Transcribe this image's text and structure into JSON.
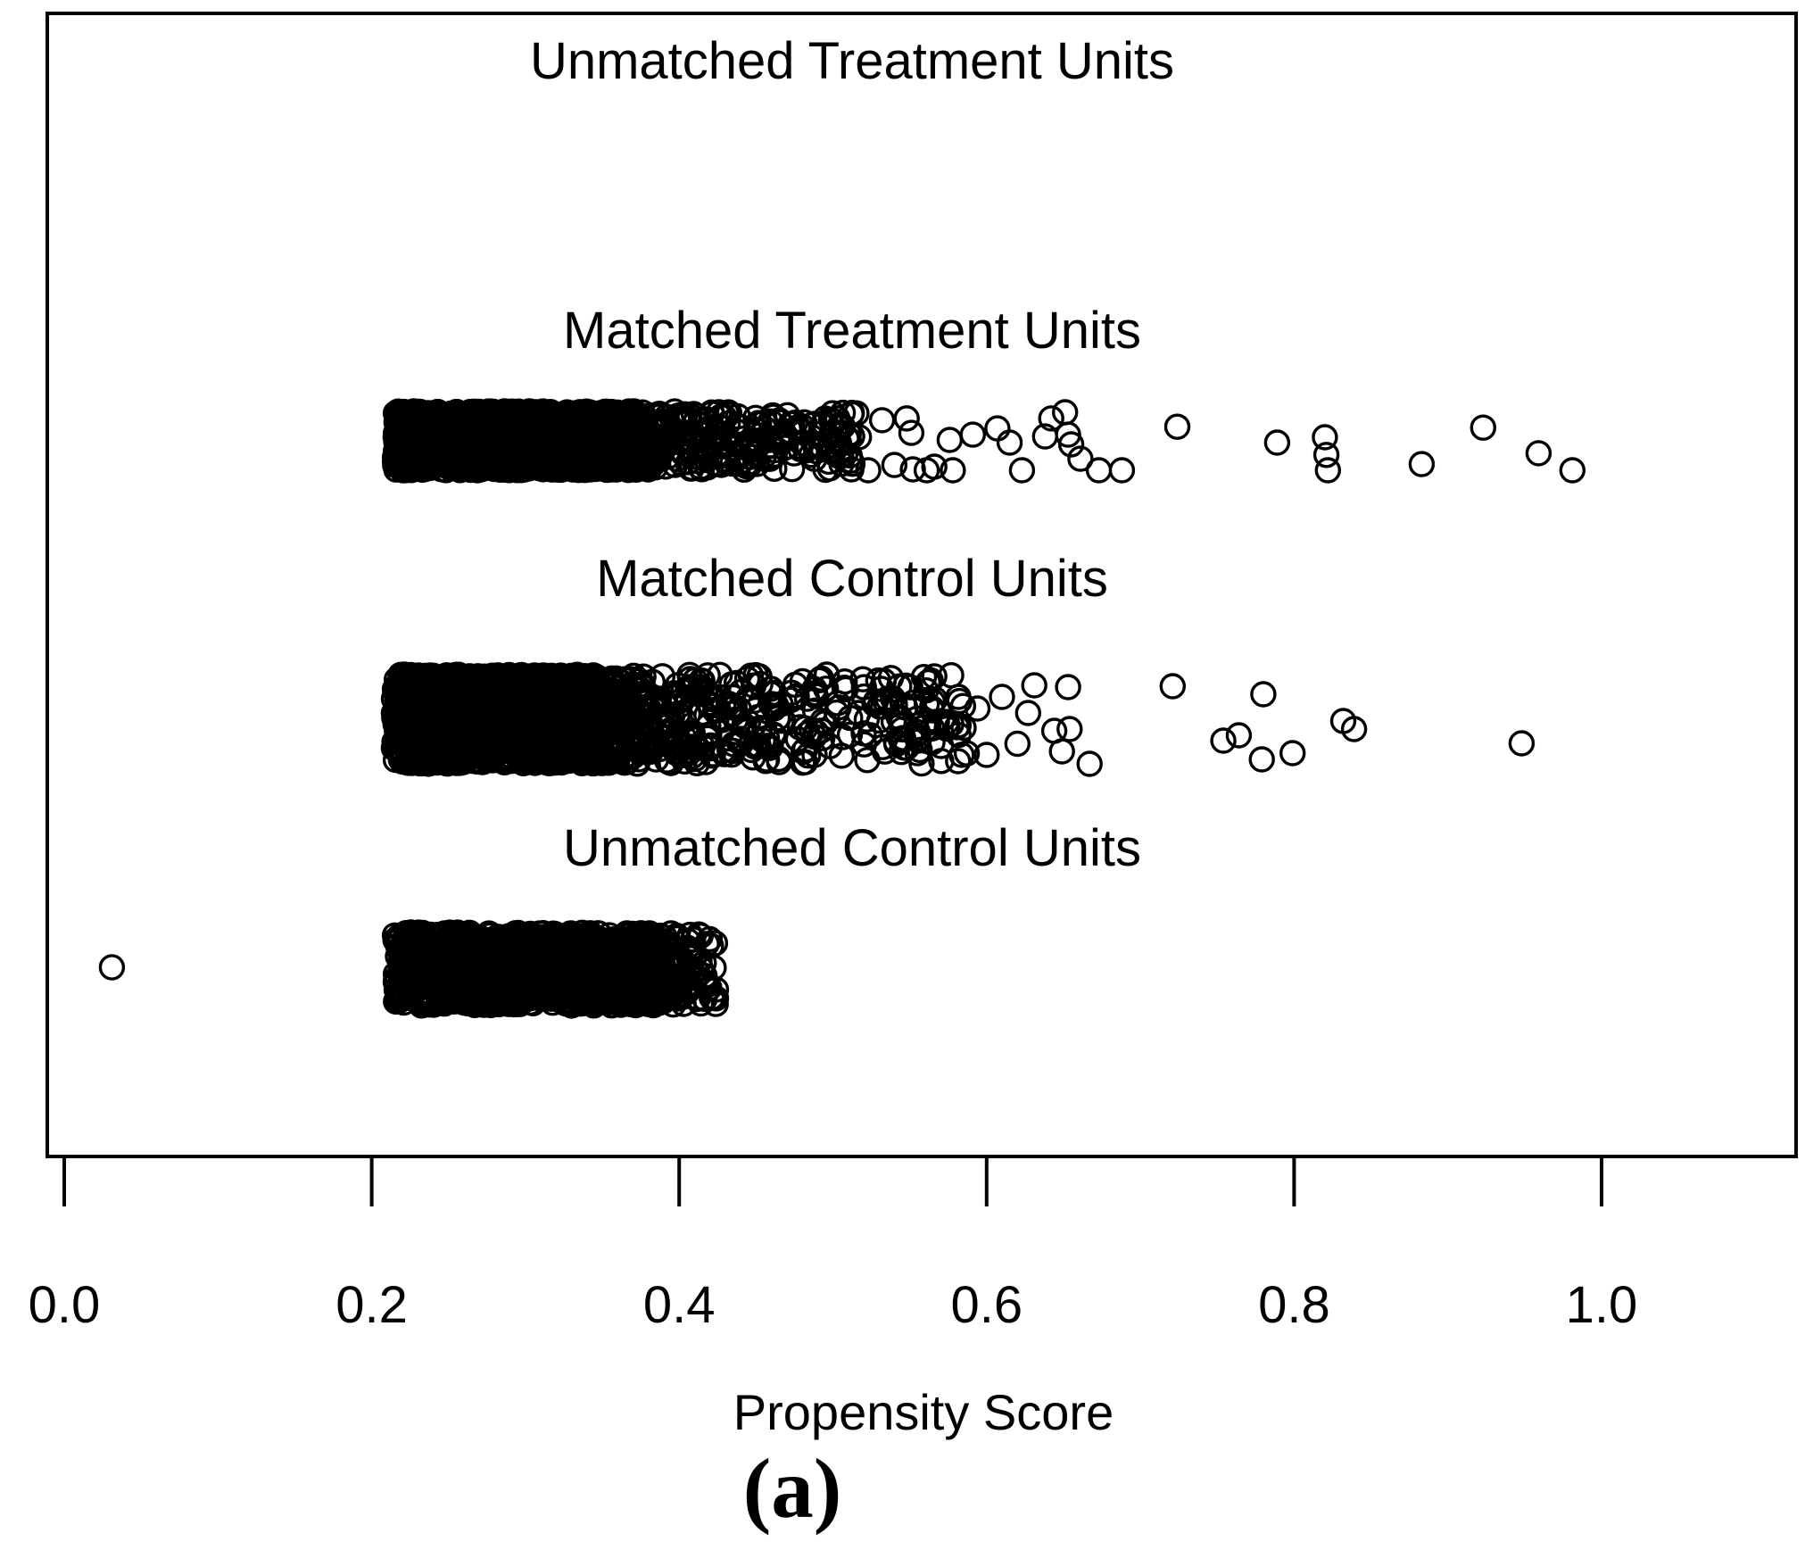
{
  "figure": {
    "background": "#ffffff",
    "text_color": "#000000",
    "point_color": "#000000",
    "border_color": "#000000",
    "caption": "(a)"
  },
  "chart_data": {
    "type": "scatter",
    "title": "",
    "xlabel": "Propensity Score",
    "ylabel": "",
    "xlim": [
      -0.011,
      1.127
    ],
    "grid": false,
    "legend": false,
    "marker": "open-circle",
    "x_ticks": [
      0.0,
      0.2,
      0.4,
      0.6,
      0.8,
      1.0
    ],
    "x_tick_labels": [
      "0.0",
      "0.2",
      "0.4",
      "0.6",
      "0.8",
      "1.0"
    ],
    "groups": [
      {
        "label": "Unmatched Treatment Units",
        "dense": null,
        "tail": null,
        "points": []
      },
      {
        "label": "Matched Treatment Units",
        "dense": {
          "x_min": 0.215,
          "x_max": 0.372,
          "count": 1600
        },
        "tail": {
          "x_min": 0.372,
          "x_max": 0.518,
          "count": 300,
          "falloff": 2.0
        },
        "points": [
          [
            0.512,
            -0.91
          ],
          [
            0.512,
            0.97
          ],
          [
            0.523,
            1.0
          ],
          [
            0.532,
            -0.7
          ],
          [
            0.54,
            0.82
          ],
          [
            0.548,
            -0.76
          ],
          [
            0.551,
            -0.27
          ],
          [
            0.552,
            0.97
          ],
          [
            0.561,
            1.0
          ],
          [
            0.566,
            0.88
          ],
          [
            0.576,
            -0.03
          ],
          [
            0.578,
            1.0
          ],
          [
            0.591,
            -0.21
          ],
          [
            0.607,
            -0.42
          ],
          [
            0.615,
            0.06
          ],
          [
            0.623,
            1.0
          ],
          [
            0.638,
            -0.15
          ],
          [
            0.642,
            -0.76
          ],
          [
            0.651,
            -0.97
          ],
          [
            0.653,
            -0.21
          ],
          [
            0.655,
            0.12
          ],
          [
            0.661,
            0.61
          ],
          [
            0.673,
            1.0
          ],
          [
            0.688,
            1.0
          ],
          [
            0.724,
            -0.48
          ],
          [
            0.789,
            0.06
          ],
          [
            0.82,
            -0.12
          ],
          [
            0.821,
            0.48
          ],
          [
            0.822,
            1.0
          ],
          [
            0.883,
            0.79
          ],
          [
            0.923,
            -0.45
          ],
          [
            0.959,
            0.42
          ],
          [
            0.981,
            1.0
          ]
        ]
      },
      {
        "label": "Matched Control Units",
        "dense": {
          "x_min": 0.214,
          "x_max": 0.344,
          "count": 1600
        },
        "tail": {
          "x_min": 0.344,
          "x_max": 0.588,
          "count": 500,
          "falloff": 2.0
        },
        "points": [
          [
            0.594,
            -0.24
          ],
          [
            0.6,
            0.8
          ],
          [
            0.61,
            -0.5
          ],
          [
            0.62,
            0.55
          ],
          [
            0.627,
            -0.14
          ],
          [
            0.631,
            -0.76
          ],
          [
            0.644,
            0.26
          ],
          [
            0.649,
            0.72
          ],
          [
            0.653,
            -0.72
          ],
          [
            0.654,
            0.22
          ],
          [
            0.667,
            1.0
          ],
          [
            0.721,
            -0.74
          ],
          [
            0.754,
            0.48
          ],
          [
            0.764,
            0.36
          ],
          [
            0.779,
            0.9
          ],
          [
            0.78,
            -0.56
          ],
          [
            0.799,
            0.76
          ],
          [
            0.832,
            0.04
          ],
          [
            0.839,
            0.22
          ],
          [
            0.948,
            0.54
          ]
        ]
      },
      {
        "label": "Unmatched Control Units",
        "dense": {
          "x_min": 0.215,
          "x_max": 0.39,
          "count": 1300
        },
        "tail": {
          "x_min": 0.39,
          "x_max": 0.424,
          "count": 80,
          "falloff": 1.5
        },
        "points": [
          [
            0.031,
            -0.05
          ]
        ]
      }
    ]
  }
}
